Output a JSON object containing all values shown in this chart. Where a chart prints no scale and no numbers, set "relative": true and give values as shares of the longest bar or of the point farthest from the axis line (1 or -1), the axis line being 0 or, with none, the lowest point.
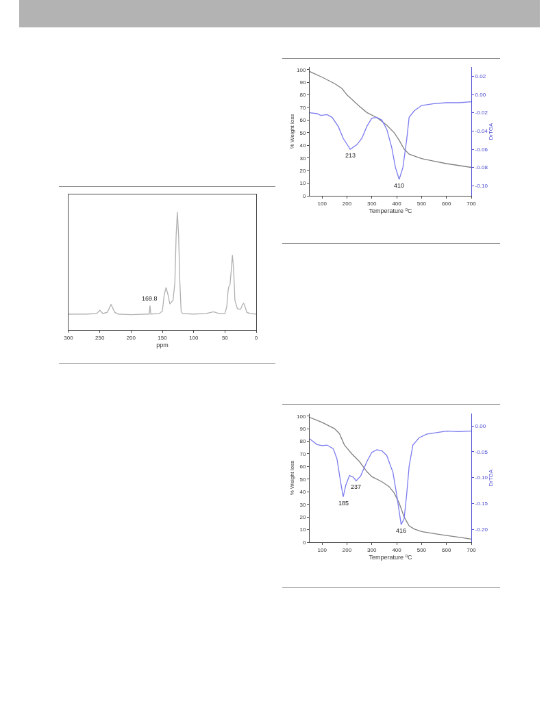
{
  "chart_data": [
    {
      "type": "line",
      "xlabel": "ppm",
      "relative": true,
      "xlim": [
        300,
        0
      ],
      "xticks": [
        300,
        250,
        200,
        150,
        100,
        50,
        0
      ],
      "grid": false,
      "marker": "none",
      "line_style": "solid",
      "annotations": [
        {
          "text": "169.8",
          "x": 169.8,
          "y": 0.208
        }
      ],
      "series": [
        {
          "color": "#b0b0b0",
          "x": [
            300,
            270,
            255,
            250,
            245,
            238,
            232,
            226,
            220,
            200,
            175,
            171,
            169.8,
            168.5,
            155,
            150,
            147,
            144,
            141,
            138,
            135,
            133,
            130,
            128,
            126,
            124,
            122,
            120,
            118,
            100,
            80,
            68,
            60,
            50,
            47,
            45,
            44,
            42,
            40,
            38,
            36,
            34,
            30,
            25,
            22,
            20,
            18,
            15,
            10,
            0
          ],
          "values": [
            0.135,
            0.135,
            0.14,
            0.167,
            0.14,
            0.15,
            0.217,
            0.15,
            0.135,
            0.13,
            0.135,
            0.135,
            0.208,
            0.135,
            0.14,
            0.16,
            0.3,
            0.36,
            0.3,
            0.22,
            0.24,
            0.25,
            0.4,
            0.8,
            1,
            0.8,
            0.4,
            0.16,
            0.14,
            0.135,
            0.14,
            0.155,
            0.14,
            0.14,
            0.2,
            0.33,
            0.365,
            0.38,
            0.5,
            0.635,
            0.5,
            0.25,
            0.18,
            0.175,
            0.215,
            0.227,
            0.2,
            0.15,
            0.14,
            0.135
          ]
        }
      ]
    },
    {
      "type": "line",
      "xlabel": "Temperature $^{o}$C",
      "ylabel": "% Weight loss",
      "y2label": "DrTGA",
      "xlim": [
        50,
        700
      ],
      "xticks": [
        100,
        200,
        300,
        400,
        500,
        600,
        700
      ],
      "ylim": [
        0,
        102
      ],
      "yticks": [
        0,
        10,
        20,
        30,
        40,
        50,
        60,
        70,
        80,
        90,
        100
      ],
      "y2lim": [
        -0.111,
        0.03
      ],
      "y2ticks": [
        {
          "value": -0.1,
          "label": "-0.10"
        },
        {
          "value": -0.08,
          "label": "-0.08"
        },
        {
          "value": -0.06,
          "label": "-0.06"
        },
        {
          "value": -0.04,
          "label": "-0.04"
        },
        {
          "value": -0.02,
          "label": "-0.02"
        },
        {
          "value": 0,
          "label": "0.00"
        },
        {
          "value": 0.02,
          "label": "0.02"
        }
      ],
      "grid": false,
      "marker": "none",
      "line_style": "solid",
      "annotations": [
        "213",
        "410"
      ],
      "series": [
        {
          "color": "#808080",
          "x": [
            50,
            100,
            150,
            180,
            200,
            250,
            280,
            320,
            360,
            390,
            410,
            430,
            450,
            500,
            550,
            600,
            650,
            700
          ],
          "values": [
            98.5,
            94,
            89,
            85,
            80,
            71,
            66,
            62,
            56,
            50,
            44,
            37,
            33,
            29.5,
            27.5,
            25.5,
            24,
            22.5
          ]
        },
        {
          "color": "#7b7bf0",
          "axis": "y2",
          "x": [
            50,
            80,
            95,
            120,
            140,
            165,
            185,
            213,
            240,
            260,
            280,
            300,
            320,
            340,
            360,
            380,
            395,
            410,
            425,
            440,
            450,
            470,
            500,
            550,
            600,
            650,
            700
          ],
          "values": [
            -0.02,
            -0.021,
            -0.023,
            -0.022,
            -0.025,
            -0.035,
            -0.048,
            -0.06,
            -0.055,
            -0.048,
            -0.035,
            -0.026,
            -0.025,
            -0.028,
            -0.038,
            -0.058,
            -0.08,
            -0.093,
            -0.08,
            -0.05,
            -0.025,
            -0.018,
            -0.012,
            -0.01,
            -0.009,
            -0.009,
            -0.008
          ]
        }
      ]
    },
    {
      "type": "line",
      "xlabel": "Temperature $^{o}$C",
      "ylabel": "% Weight loss",
      "y2label": "DrTGA",
      "xlim": [
        50,
        700
      ],
      "xticks": [
        100,
        200,
        300,
        400,
        500,
        600,
        700
      ],
      "ylim": [
        0,
        102
      ],
      "yticks": [
        0,
        10,
        20,
        30,
        40,
        50,
        60,
        70,
        80,
        90,
        100
      ],
      "y2lim": [
        -0.225,
        0.024
      ],
      "y2ticks": [
        {
          "value": -0.2,
          "label": "-0.20"
        },
        {
          "value": -0.15,
          "label": "-0.15"
        },
        {
          "value": -0.1,
          "label": "-0.10"
        },
        {
          "value": -0.05,
          "label": "-0.05"
        },
        {
          "value": 0,
          "label": "0.00"
        }
      ],
      "grid": false,
      "marker": "none",
      "line_style": "solid",
      "annotations": [
        "185",
        "237",
        "416"
      ],
      "series": [
        {
          "color": "#808080",
          "x": [
            50,
            100,
            150,
            170,
            190,
            220,
            250,
            280,
            300,
            340,
            370,
            390,
            410,
            430,
            450,
            470,
            500,
            550,
            600,
            650,
            700
          ],
          "values": [
            99,
            95,
            90,
            86,
            77,
            70,
            64,
            56,
            52,
            48,
            44,
            39,
            31,
            20,
            13,
            10.5,
            8.5,
            6.8,
            5.3,
            4,
            2.5
          ]
        },
        {
          "color": "#7b7bf0",
          "axis": "y2",
          "x": [
            50,
            80,
            100,
            120,
            145,
            160,
            175,
            185,
            195,
            210,
            225,
            237,
            255,
            280,
            300,
            320,
            340,
            360,
            385,
            400,
            418,
            430,
            440,
            450,
            465,
            490,
            520,
            560,
            600,
            650,
            700
          ],
          "values": [
            -0.025,
            -0.036,
            -0.038,
            -0.037,
            -0.044,
            -0.064,
            -0.11,
            -0.137,
            -0.115,
            -0.096,
            -0.099,
            -0.106,
            -0.097,
            -0.069,
            -0.051,
            -0.046,
            -0.048,
            -0.057,
            -0.09,
            -0.133,
            -0.191,
            -0.179,
            -0.133,
            -0.078,
            -0.037,
            -0.023,
            -0.016,
            -0.013,
            -0.01,
            -0.011,
            -0.01
          ]
        }
      ]
    }
  ]
}
